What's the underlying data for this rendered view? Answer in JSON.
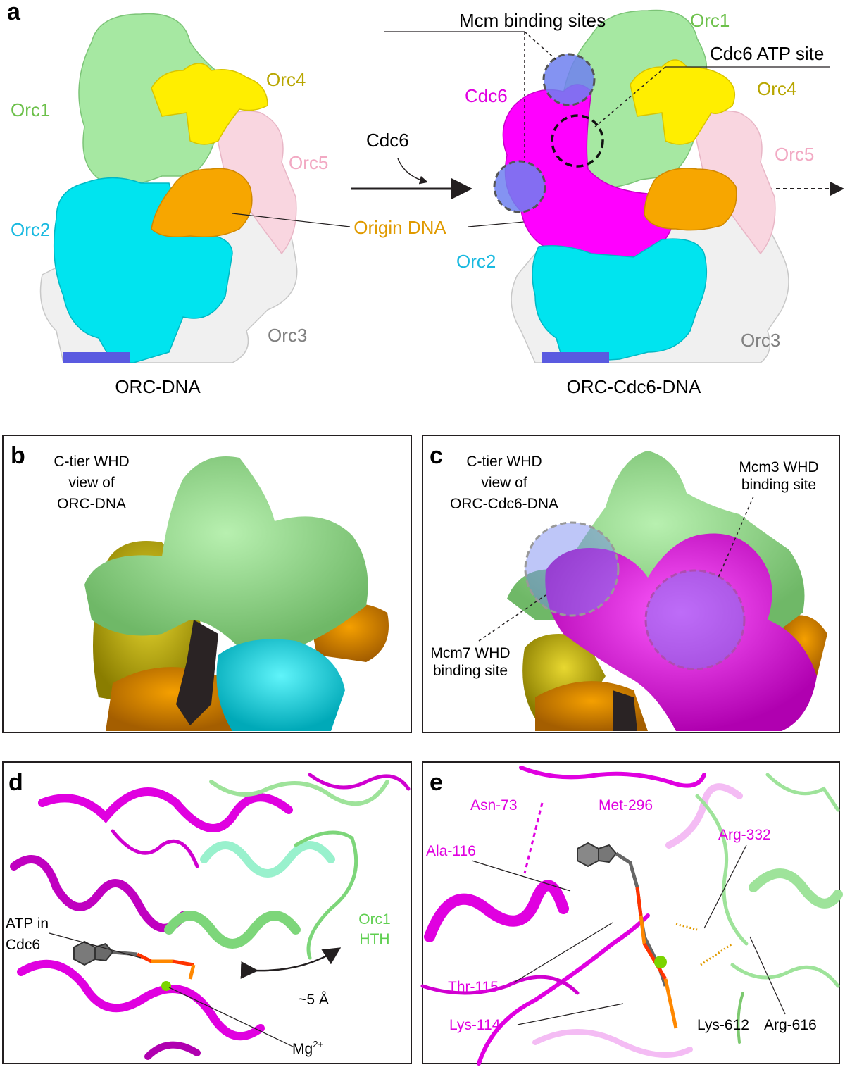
{
  "colors": {
    "orc1": "#9ee39a",
    "orc2": "#00e4ef",
    "orc3": "#f0f0f0",
    "orc4": "#ffee00",
    "orc5": "#f9d6e0",
    "cdc6": "#ff00ff",
    "dna": "#f7a600",
    "mcm_site": "#6f80f0",
    "orc1_text": "#6cc04a",
    "orc2_text": "#18b9e0",
    "orc4_text": "#b8a600",
    "orc5_text": "#f2a9c3",
    "orc3_text": "#808080",
    "dna_text": "#e09a00",
    "cdc6_text": "#e000e0"
  },
  "panel_a": {
    "letter": "a",
    "left": {
      "caption": "ORC-DNA",
      "orc1": "Orc1",
      "orc4": "Orc4",
      "orc5": "Orc5",
      "orc2": "Orc2",
      "orc3": "Orc3"
    },
    "arrow_label": "Cdc6",
    "origin_dna": "Origin DNA",
    "right": {
      "caption": "ORC-Cdc6-DNA",
      "mcm_binding_sites": "Mcm binding sites",
      "orc1": "Orc1",
      "cdc6_atp_site": "Cdc6 ATP site",
      "cdc6": "Cdc6",
      "orc4": "Orc4",
      "orc5": "Orc5",
      "orc2": "Orc2",
      "orc3": "Orc3"
    }
  },
  "panel_b": {
    "letter": "b",
    "title_line1": "C-tier WHD",
    "title_line2": "view of",
    "title_line3": "ORC-DNA"
  },
  "panel_c": {
    "letter": "c",
    "title_line1": "C-tier WHD",
    "title_line2": "view of",
    "title_line3": "ORC-Cdc6-DNA",
    "mcm3_line1": "Mcm3 WHD",
    "mcm3_line2": "binding site",
    "mcm7_line1": "Mcm7 WHD",
    "mcm7_line2": "binding site"
  },
  "panel_d": {
    "letter": "d",
    "atp_line1": "ATP in",
    "atp_line2": "Cdc6",
    "orc1_line1": "Orc1",
    "orc1_line2": "HTH",
    "distance": "~5 Å",
    "mg": "Mg",
    "mg_sup": "2+"
  },
  "panel_e": {
    "letter": "e",
    "asn73": "Asn-73",
    "met296": "Met-296",
    "ala116": "Ala-116",
    "arg332": "Arg-332",
    "thr115": "Thr-115",
    "lys114": "Lys-114",
    "lys612": "Lys-612",
    "arg616": "Arg-616"
  }
}
